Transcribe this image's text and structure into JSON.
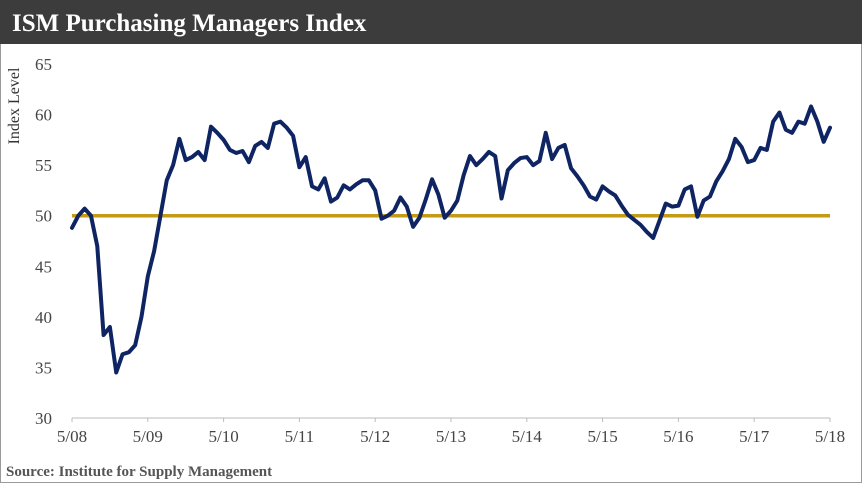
{
  "chart_data": {
    "type": "line",
    "title": "ISM Purchasing Managers Index",
    "y_label": "Index Level",
    "source": "Source:  Institute for Supply Management",
    "color": "#0f2462",
    "reference_line": {
      "value": 50,
      "color": "#c39b16"
    },
    "ylim": [
      30,
      65
    ],
    "yticks": [
      30,
      35,
      40,
      45,
      50,
      55,
      60,
      65
    ],
    "xticks": [
      "5/08",
      "5/09",
      "5/10",
      "5/11",
      "5/12",
      "5/13",
      "5/14",
      "5/15",
      "5/16",
      "5/17",
      "5/18"
    ],
    "x": [
      "5/08",
      "6/08",
      "7/08",
      "8/08",
      "9/08",
      "10/08",
      "11/08",
      "12/08",
      "1/09",
      "2/09",
      "3/09",
      "4/09",
      "5/09",
      "6/09",
      "7/09",
      "8/09",
      "9/09",
      "10/09",
      "11/09",
      "12/09",
      "1/10",
      "2/10",
      "3/10",
      "4/10",
      "5/10",
      "6/10",
      "7/10",
      "8/10",
      "9/10",
      "10/10",
      "11/10",
      "12/10",
      "1/11",
      "2/11",
      "3/11",
      "4/11",
      "5/11",
      "6/11",
      "7/11",
      "8/11",
      "9/11",
      "10/11",
      "11/11",
      "12/11",
      "1/12",
      "2/12",
      "3/12",
      "4/12",
      "5/12",
      "6/12",
      "7/12",
      "8/12",
      "9/12",
      "10/12",
      "11/12",
      "12/12",
      "1/13",
      "2/13",
      "3/13",
      "4/13",
      "5/13",
      "6/13",
      "7/13",
      "8/13",
      "9/13",
      "10/13",
      "11/13",
      "12/13",
      "1/14",
      "2/14",
      "3/14",
      "4/14",
      "5/14",
      "6/14",
      "7/14",
      "8/14",
      "9/14",
      "10/14",
      "11/14",
      "12/14",
      "1/15",
      "2/15",
      "3/15",
      "4/15",
      "5/15",
      "6/15",
      "7/15",
      "8/15",
      "9/15",
      "10/15",
      "11/15",
      "12/15",
      "1/16",
      "2/16",
      "3/16",
      "4/16",
      "5/16",
      "6/16",
      "7/16",
      "8/16",
      "9/16",
      "10/16",
      "11/16",
      "12/16",
      "1/17",
      "2/17",
      "3/17",
      "4/17",
      "5/17",
      "6/17",
      "7/17",
      "8/17",
      "9/17",
      "10/17",
      "11/17",
      "12/17",
      "1/18",
      "2/18",
      "3/18",
      "4/18",
      "5/18"
    ],
    "values": [
      48.8,
      50,
      50.7,
      50,
      47,
      38.2,
      39,
      34.5,
      36.3,
      36.5,
      37.2,
      40,
      44,
      46.5,
      50,
      53.5,
      55,
      57.6,
      55.5,
      55.8,
      56.3,
      55.5,
      58.8,
      58.2,
      57.5,
      56.5,
      56.2,
      56.4,
      55.3,
      56.9,
      57.3,
      56.7,
      59.1,
      59.3,
      58.7,
      57.9,
      54.8,
      55.8,
      52.9,
      52.6,
      53.7,
      51.4,
      51.8,
      53,
      52.6,
      53.1,
      53.5,
      53.5,
      52.5,
      49.7,
      50,
      50.5,
      51.8,
      50.9,
      48.9,
      49.8,
      51.6,
      53.6,
      52.1,
      49.8,
      50.5,
      51.5,
      54,
      55.9,
      55,
      55.6,
      56.3,
      55.9,
      51.7,
      54.5,
      55.2,
      55.7,
      55.8,
      55,
      55.4,
      58.2,
      55.6,
      56.7,
      57,
      54.7,
      53.9,
      53,
      51.9,
      51.6,
      52.9,
      52.4,
      52,
      51,
      50.1,
      49.6,
      49.1,
      48.4,
      47.8,
      49.5,
      51.2,
      50.9,
      51,
      52.6,
      52.9,
      49.9,
      51.5,
      51.9,
      53.4,
      54.4,
      55.6,
      57.6,
      56.8,
      55.3,
      55.5,
      56.7,
      56.5,
      59.3,
      60.2,
      58.5,
      58.2,
      59.3,
      59.1,
      60.8,
      59.3,
      57.3,
      58.7
    ]
  }
}
